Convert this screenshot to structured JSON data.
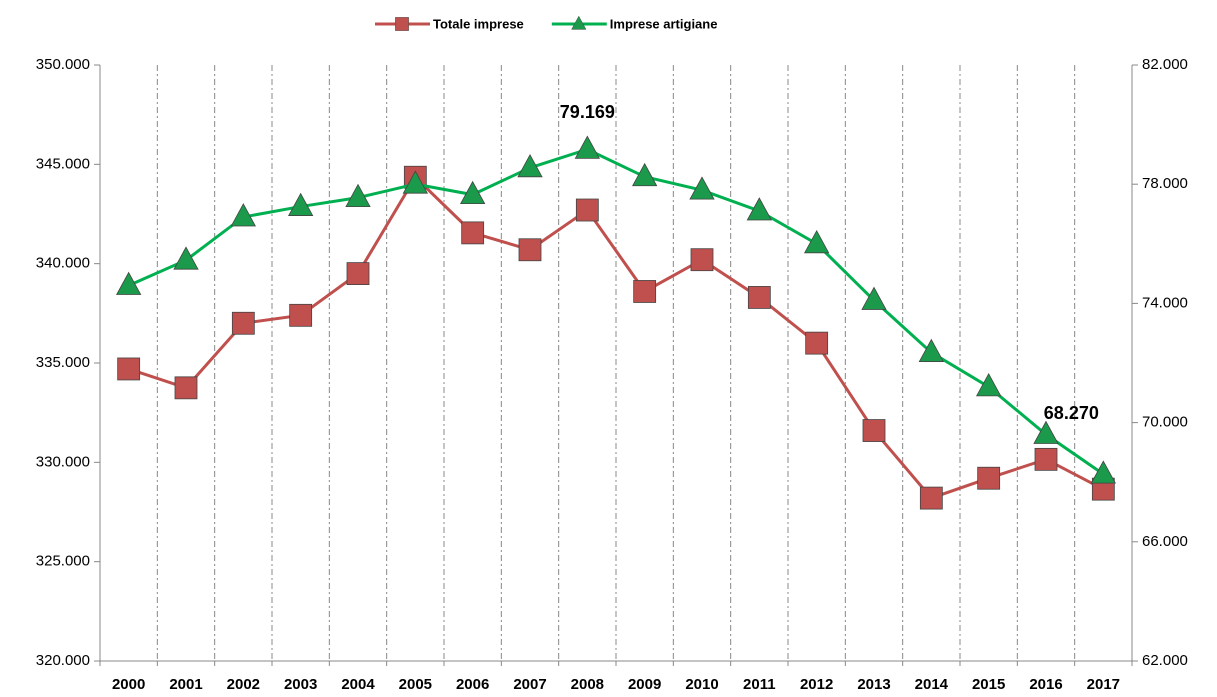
{
  "chart_data": {
    "type": "line",
    "categories": [
      "2000",
      "2001",
      "2002",
      "2003",
      "2004",
      "2005",
      "2006",
      "2007",
      "2008",
      "2009",
      "2010",
      "2011",
      "2012",
      "2013",
      "2014",
      "2015",
      "2016",
      "2017"
    ],
    "series": [
      {
        "name": "Totale imprese",
        "color": "#c0504d",
        "marker": "square",
        "values": [
          334700,
          333750,
          337000,
          337400,
          339500,
          344350,
          341550,
          340700,
          342700,
          338600,
          340200,
          338300,
          336000,
          331600,
          328200,
          329200,
          330150,
          328650
        ]
      },
      {
        "name": "Imprese artigiane",
        "color": "#00b050",
        "marker": "triangle",
        "axis": "y2",
        "values": [
          74600,
          75450,
          76900,
          77250,
          77550,
          78000,
          77650,
          78550,
          79169,
          78250,
          77800,
          77100,
          76000,
          74100,
          72350,
          71200,
          69600,
          68270
        ],
        "value_labels": [
          null,
          null,
          null,
          null,
          null,
          null,
          null,
          null,
          "79.169",
          null,
          null,
          null,
          null,
          null,
          null,
          null,
          null,
          "68.270"
        ]
      }
    ],
    "ylim": [
      320000,
      350000
    ],
    "yticks": [
      {
        "value": 320000,
        "label": "320.000"
      },
      {
        "value": 325000,
        "label": "325.000"
      },
      {
        "value": 330000,
        "label": "330.000"
      },
      {
        "value": 335000,
        "label": "335.000"
      },
      {
        "value": 340000,
        "label": "340.000"
      },
      {
        "value": 345000,
        "label": "345.000"
      },
      {
        "value": 350000,
        "label": "350.000"
      }
    ],
    "y2lim": [
      62000,
      82000
    ],
    "y2ticks": [
      {
        "value": 62000,
        "label": "62.000"
      },
      {
        "value": 66000,
        "label": "66.000"
      },
      {
        "value": 70000,
        "label": "70.000"
      },
      {
        "value": 74000,
        "label": "74.000"
      },
      {
        "value": 78000,
        "label": "78.000"
      },
      {
        "value": 82000,
        "label": "82.000"
      }
    ],
    "grid": "vertical-dashed",
    "legend": "top"
  }
}
